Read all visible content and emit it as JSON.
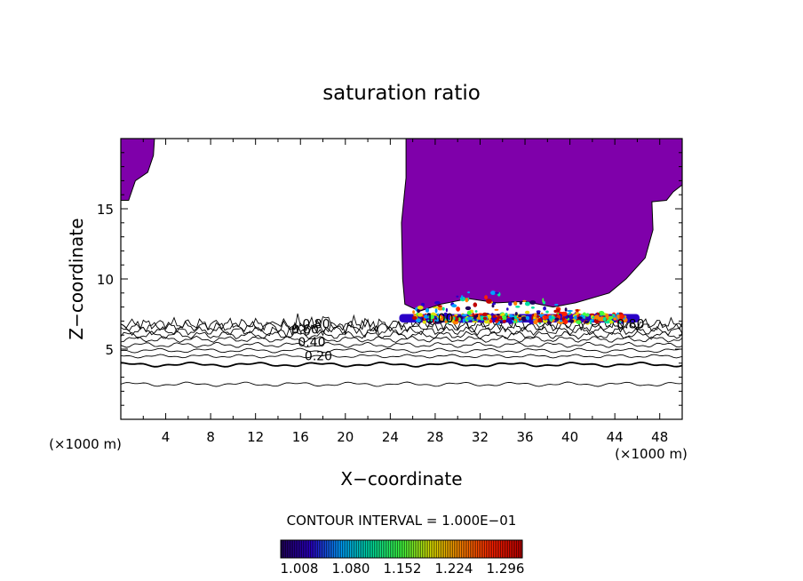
{
  "chart_data": {
    "type": "contour",
    "title": "saturation ratio",
    "xlabel": "X−coordinate",
    "ylabel": "Z−coordinate",
    "x_unit_left": "(×1000 m)",
    "x_unit_right": "(×1000 m)",
    "xlim": [
      0,
      50
    ],
    "ylim": [
      0,
      20
    ],
    "x_ticks": [
      {
        "value": 4,
        "label": "4"
      },
      {
        "value": 8,
        "label": "8"
      },
      {
        "value": 12,
        "label": "12"
      },
      {
        "value": 16,
        "label": "16"
      },
      {
        "value": 20,
        "label": "20"
      },
      {
        "value": 24,
        "label": "24"
      },
      {
        "value": 28,
        "label": "28"
      },
      {
        "value": 32,
        "label": "32"
      },
      {
        "value": 36,
        "label": "36"
      },
      {
        "value": 40,
        "label": "40"
      },
      {
        "value": 44,
        "label": "44"
      },
      {
        "value": 48,
        "label": "48"
      }
    ],
    "y_ticks": [
      {
        "value": 5,
        "label": "5"
      },
      {
        "value": 10,
        "label": "10"
      },
      {
        "value": 15,
        "label": "15"
      }
    ],
    "contour_levels": [
      {
        "z": 2.5,
        "amp": 0.1,
        "freq": 1.3
      },
      {
        "z": 3.9,
        "amp": 0.1,
        "freq": 1.1
      },
      {
        "z": 4.5,
        "amp": 0.08,
        "freq": 1.7
      },
      {
        "z": 4.9,
        "amp": 0.1,
        "freq": 1.5
      },
      {
        "z": 5.3,
        "amp": 0.12,
        "freq": 1.9
      },
      {
        "z": 5.7,
        "amp": 0.14,
        "freq": 2.3
      },
      {
        "z": 6.0,
        "amp": 0.18,
        "freq": 2.9
      },
      {
        "z": 6.3,
        "amp": 0.2,
        "freq": 3.7
      },
      {
        "z": 6.6,
        "amp": 0.24,
        "freq": 4.3
      },
      {
        "z": 6.8,
        "amp": 0.28,
        "freq": 5.1
      }
    ],
    "contour_labels": [
      {
        "text": "0.20",
        "x": 17.6,
        "z": 4.2
      },
      {
        "text": "0.40",
        "x": 17.0,
        "z": 5.2
      },
      {
        "text": "0.60",
        "x": 16.4,
        "z": 6.1
      },
      {
        "text": "0.80",
        "x": 17.4,
        "z": 6.5
      },
      {
        "text": "1.00",
        "x": 28.4,
        "z": 6.9
      },
      {
        "text": "0.80",
        "x": 45.4,
        "z": 6.5
      }
    ],
    "fill_color": "#7f00aa",
    "supersat_region": {
      "outline": [
        [
          25.4,
          20
        ],
        [
          25.4,
          17.2
        ],
        [
          25.0,
          14
        ],
        [
          25.1,
          10
        ],
        [
          25.3,
          8.2
        ],
        [
          26.6,
          7.7
        ],
        [
          28.5,
          8.2
        ],
        [
          31.0,
          8.6
        ],
        [
          33.5,
          8.3
        ],
        [
          36.0,
          8.4
        ],
        [
          38.5,
          8.0
        ],
        [
          40.5,
          8.3
        ],
        [
          43.5,
          9.0
        ],
        [
          45.0,
          10.0
        ],
        [
          46.7,
          11.5
        ],
        [
          47.4,
          13.5
        ],
        [
          47.3,
          15.5
        ],
        [
          48.6,
          15.6
        ],
        [
          49.2,
          16.2
        ],
        [
          50,
          16.7
        ],
        [
          50,
          20
        ]
      ],
      "top_left_patch": [
        [
          0,
          20
        ],
        [
          3.0,
          20
        ],
        [
          2.9,
          18.8
        ],
        [
          2.4,
          17.6
        ],
        [
          1.3,
          17.0
        ],
        [
          0.7,
          15.6
        ],
        [
          0,
          15.6
        ]
      ]
    },
    "cloud_band": {
      "x_start": 24.8,
      "x_end": 46.2,
      "z_bottom": 6.9,
      "z_top": 7.5
    },
    "colorbar": {
      "min": 1.008,
      "max": 1.332,
      "tick_labels": [
        "1.008",
        "1.080",
        "1.152",
        "1.224",
        "1.296"
      ],
      "colors": [
        "#20005a",
        "#2a00c8",
        "#00a0ff",
        "#00e0a0",
        "#40ff40",
        "#e0e000",
        "#ff8000",
        "#ff2000",
        "#c00000"
      ]
    },
    "contour_interval_text": "CONTOUR INTERVAL = 1.000E−01"
  }
}
